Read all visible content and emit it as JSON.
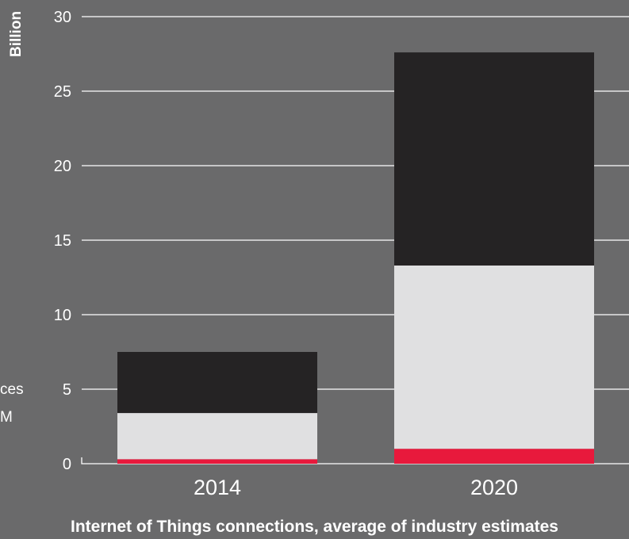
{
  "chart_data": {
    "type": "bar",
    "stacked": true,
    "categories": [
      "2014",
      "2020"
    ],
    "series": [
      {
        "values": [
          0.3,
          1.0
        ],
        "color": "#e8193c"
      },
      {
        "values": [
          3.1,
          12.3
        ],
        "color": "#e0e0e1"
      },
      {
        "values": [
          4.1,
          14.3
        ],
        "color": "#252324"
      }
    ],
    "title": "Internet of Things connections, average of industry estimates",
    "ylabel": "Billion",
    "xlabel": "",
    "ylim": [
      0,
      30
    ],
    "yticks": [
      0,
      5,
      10,
      15,
      20,
      25,
      30
    ],
    "grid": true
  },
  "cutoff_text": {
    "line1": "ces",
    "line2": "M"
  },
  "colors": {
    "background": "#6a6a6b",
    "grid": "#ffffff",
    "text": "#ffffff"
  }
}
